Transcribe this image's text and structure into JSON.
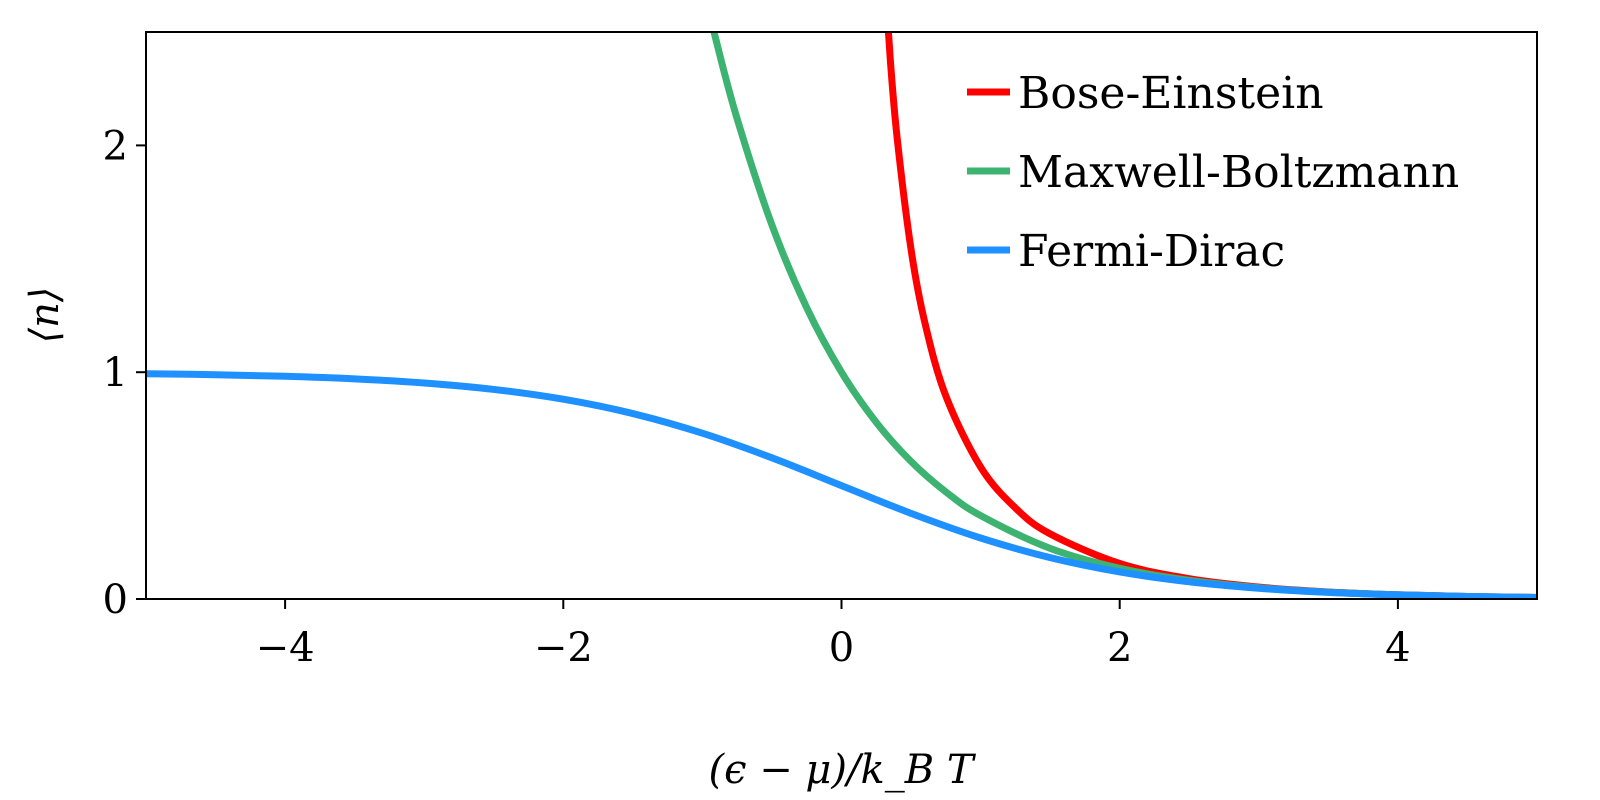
{
  "chart_data": {
    "type": "line",
    "title": "",
    "xlabel": "(ϵ − μ)/k_B T",
    "ylabel": "⟨n⟩",
    "xlim": [
      -5,
      5
    ],
    "ylim": [
      0,
      2.5
    ],
    "xticks": [
      -4,
      -2,
      0,
      2,
      4
    ],
    "xtick_labels": [
      "−4",
      "−2",
      "0",
      "2",
      "4"
    ],
    "yticks": [
      0,
      1,
      2
    ],
    "ytick_labels": [
      "0",
      "1",
      "2"
    ],
    "grid": false,
    "legend_placement": "top-right",
    "series": [
      {
        "name": "Bose-Einstein",
        "color": "#ff0000",
        "x": [
          0.3,
          0.35,
          0.4,
          0.5,
          0.6,
          0.75,
          1,
          1.25,
          1.5,
          2,
          2.5,
          3,
          3.5,
          4,
          4.5,
          5
        ],
        "y": [
          2.858,
          2.386,
          2.033,
          1.5415,
          1.2164,
          0.8953,
          0.582,
          0.4016,
          0.2872,
          0.1565,
          0.0894,
          0.0524,
          0.0311,
          0.0187,
          0.0112,
          0.0068
        ]
      },
      {
        "name": "Maxwell-Boltzmann",
        "color": "#3cb371",
        "x": [
          -1,
          -0.9,
          -0.75,
          -0.5,
          -0.25,
          0,
          0.25,
          0.5,
          0.75,
          1,
          1.5,
          2,
          2.5,
          3,
          3.5,
          4,
          4.5,
          5
        ],
        "y": [
          2.718,
          2.4596,
          2.117,
          1.6487,
          1.284,
          1,
          0.7788,
          0.6065,
          0.4724,
          0.3679,
          0.2231,
          0.1353,
          0.0821,
          0.0498,
          0.0302,
          0.0183,
          0.0111,
          0.0067
        ]
      },
      {
        "name": "Fermi-Dirac",
        "color": "#1e90ff",
        "x": [
          -5,
          -4.5,
          -4,
          -3.5,
          -3,
          -2.5,
          -2,
          -1.5,
          -1,
          -0.5,
          0,
          0.5,
          1,
          1.5,
          2,
          2.5,
          3,
          3.5,
          4,
          4.5,
          5
        ],
        "y": [
          0.9933,
          0.989,
          0.982,
          0.9707,
          0.9526,
          0.9241,
          0.8808,
          0.8176,
          0.7311,
          0.6225,
          0.5,
          0.3775,
          0.2689,
          0.1824,
          0.1192,
          0.0759,
          0.0474,
          0.0293,
          0.018,
          0.011,
          0.0067
        ]
      }
    ]
  }
}
